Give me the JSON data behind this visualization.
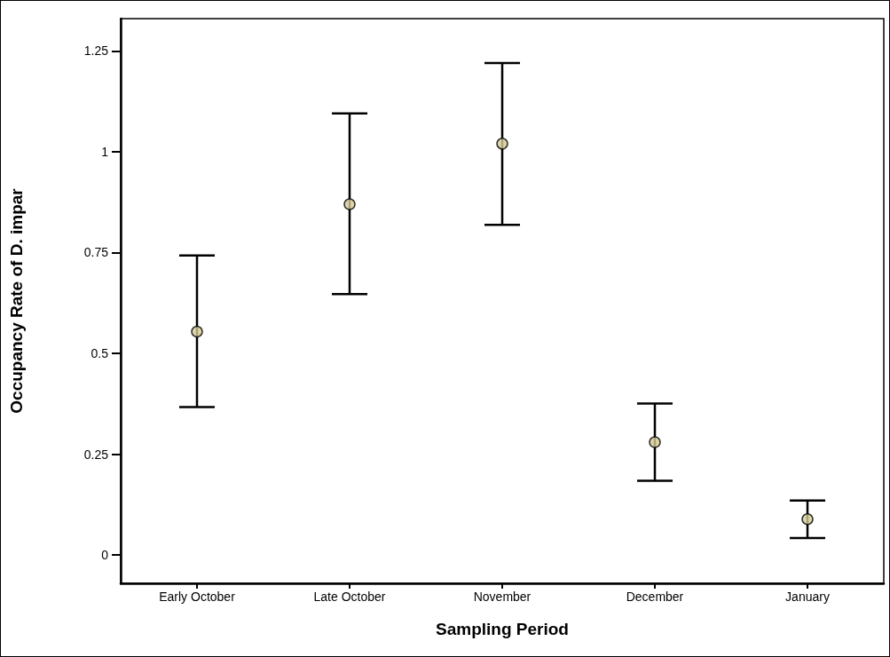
{
  "chart_data": {
    "type": "scatter",
    "xlabel": "Sampling Period",
    "ylabel": "Occupancy Rate of D. impar",
    "categories": [
      "Early October",
      "Late October",
      "November",
      "December",
      "January"
    ],
    "values": [
      0.554,
      0.87,
      1.02,
      0.28,
      0.089
    ],
    "errors": [
      [
        0.367,
        0.743
      ],
      [
        0.647,
        1.095
      ],
      [
        0.819,
        1.22
      ],
      [
        0.184,
        0.376
      ],
      [
        0.042,
        0.135
      ]
    ],
    "color": "#d6cc96",
    "marker": "circle",
    "ylim": [
      -0.07,
      1.33
    ],
    "yticks": [
      0,
      0.25,
      0.5,
      0.75,
      1,
      1.25
    ],
    "grid": false
  }
}
